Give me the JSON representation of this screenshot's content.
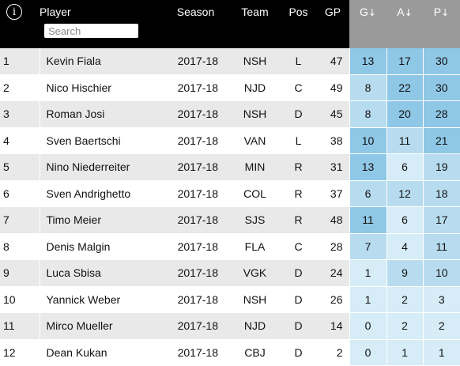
{
  "header": {
    "info_icon": "info-icon",
    "player": "Player",
    "season": "Season",
    "team": "Team",
    "pos": "Pos",
    "gp": "GP",
    "g": "G",
    "a": "A",
    "p": "P",
    "sort_arrow": "↓"
  },
  "search": {
    "placeholder": "Search",
    "value": ""
  },
  "colors": {
    "header_bg": "#000000",
    "sorted_header_bg": "#9a9a9a",
    "row_stripe": "#e9e9e9",
    "heat_light": "#d6ecf7",
    "heat_mid": "#b8dcef",
    "heat_dark": "#8fc7e6"
  },
  "rows": [
    {
      "rank": "1",
      "player": "Kevin Fiala",
      "season": "2017-18",
      "team": "NSH",
      "pos": "L",
      "gp": "47",
      "g": "13",
      "a": "17",
      "p": "30"
    },
    {
      "rank": "2",
      "player": "Nico Hischier",
      "season": "2017-18",
      "team": "NJD",
      "pos": "C",
      "gp": "49",
      "g": "8",
      "a": "22",
      "p": "30"
    },
    {
      "rank": "3",
      "player": "Roman Josi",
      "season": "2017-18",
      "team": "NSH",
      "pos": "D",
      "gp": "45",
      "g": "8",
      "a": "20",
      "p": "28"
    },
    {
      "rank": "4",
      "player": "Sven Baertschi",
      "season": "2017-18",
      "team": "VAN",
      "pos": "L",
      "gp": "38",
      "g": "10",
      "a": "11",
      "p": "21"
    },
    {
      "rank": "5",
      "player": "Nino Niederreiter",
      "season": "2017-18",
      "team": "MIN",
      "pos": "R",
      "gp": "31",
      "g": "13",
      "a": "6",
      "p": "19"
    },
    {
      "rank": "6",
      "player": "Sven Andrighetto",
      "season": "2017-18",
      "team": "COL",
      "pos": "R",
      "gp": "37",
      "g": "6",
      "a": "12",
      "p": "18"
    },
    {
      "rank": "7",
      "player": "Timo Meier",
      "season": "2017-18",
      "team": "SJS",
      "pos": "R",
      "gp": "48",
      "g": "11",
      "a": "6",
      "p": "17"
    },
    {
      "rank": "8",
      "player": "Denis Malgin",
      "season": "2017-18",
      "team": "FLA",
      "pos": "C",
      "gp": "28",
      "g": "7",
      "a": "4",
      "p": "11"
    },
    {
      "rank": "9",
      "player": "Luca Sbisa",
      "season": "2017-18",
      "team": "VGK",
      "pos": "D",
      "gp": "24",
      "g": "1",
      "a": "9",
      "p": "10"
    },
    {
      "rank": "10",
      "player": "Yannick Weber",
      "season": "2017-18",
      "team": "NSH",
      "pos": "D",
      "gp": "26",
      "g": "1",
      "a": "2",
      "p": "3"
    },
    {
      "rank": "11",
      "player": "Mirco Mueller",
      "season": "2017-18",
      "team": "NJD",
      "pos": "D",
      "gp": "14",
      "g": "0",
      "a": "2",
      "p": "2"
    },
    {
      "rank": "12",
      "player": "Dean Kukan",
      "season": "2017-18",
      "team": "CBJ",
      "pos": "D",
      "gp": "2",
      "g": "0",
      "a": "1",
      "p": "1"
    }
  ]
}
